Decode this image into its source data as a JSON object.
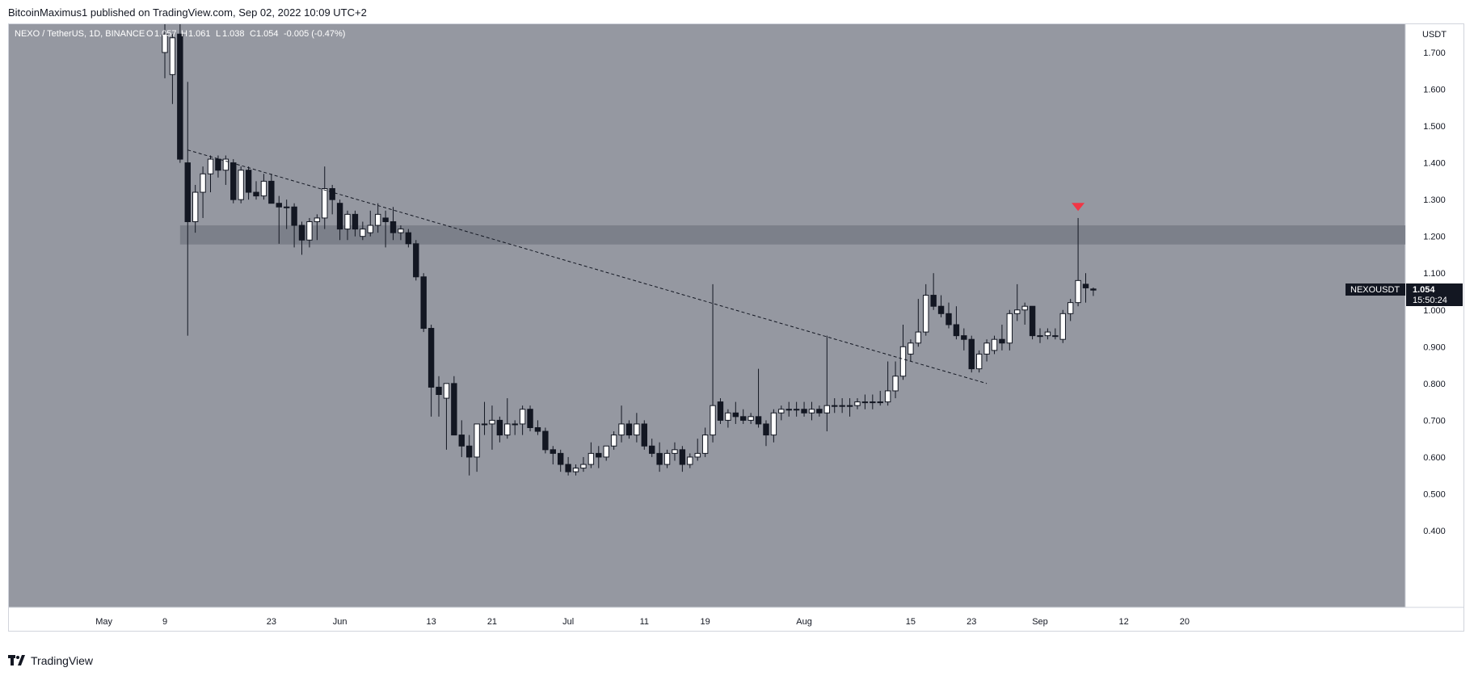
{
  "header": {
    "published_text": "BitcoinMaximus1 published on TradingView.com, Sep 02, 2022 10:09 UTC+2"
  },
  "footer": {
    "brand": "TradingView",
    "logo_icon": "tradingview-logo-icon"
  },
  "colors": {
    "background": "#9598a1",
    "up_candle_fill": "#ffffff",
    "down_candle_fill": "#131722",
    "wick": "#131722",
    "resistance_zone": "#787b86",
    "marker": "#f23645",
    "price_label_bg": "#131722"
  },
  "legend": {
    "symbol": "NEXO / TetherUS, 1D, BINANCE",
    "o_label": "O",
    "o_value": "1.057",
    "h_label": "H",
    "h_value": "1.061",
    "l_label": "L",
    "l_value": "1.038",
    "c_label": "C",
    "c_value": "1.054",
    "change": "-0.005 (-0.47%)"
  },
  "price_label": {
    "symbol": "NEXOUSDT",
    "price": "1.054",
    "countdown": "15:50:24"
  },
  "chart_data": {
    "type": "candlestick",
    "symbol": "NEXOUSDT",
    "y_axis_unit": "USDT",
    "ylim": [
      0.4,
      1.78
    ],
    "y_ticks": [
      "0.400",
      "0.500",
      "0.600",
      "0.700",
      "0.800",
      "0.900",
      "1.000",
      "1.100",
      "1.200",
      "1.300",
      "1.400",
      "1.500",
      "1.600",
      "1.700"
    ],
    "x_ticks": [
      {
        "label": "May",
        "date": "2022-05-01"
      },
      {
        "label": "9",
        "date": "2022-05-09"
      },
      {
        "label": "23",
        "date": "2022-05-23"
      },
      {
        "label": "Jun",
        "date": "2022-06-01"
      },
      {
        "label": "13",
        "date": "2022-06-13"
      },
      {
        "label": "21",
        "date": "2022-06-21"
      },
      {
        "label": "Jul",
        "date": "2022-07-01"
      },
      {
        "label": "11",
        "date": "2022-07-11"
      },
      {
        "label": "19",
        "date": "2022-07-19"
      },
      {
        "label": "Aug",
        "date": "2022-08-01"
      },
      {
        "label": "15",
        "date": "2022-08-15"
      },
      {
        "label": "23",
        "date": "2022-08-23"
      },
      {
        "label": "Sep",
        "date": "2022-09-01"
      },
      {
        "label": "12",
        "date": "2022-09-12"
      },
      {
        "label": "20",
        "date": "2022-09-20"
      }
    ],
    "x_range": [
      "2022-04-26",
      "2022-09-26"
    ],
    "candles": [
      {
        "d": "2022-05-09",
        "o": 1.7,
        "h": 1.78,
        "l": 1.63,
        "c": 1.75
      },
      {
        "d": "2022-05-10",
        "o": 1.64,
        "h": 1.75,
        "l": 1.56,
        "c": 1.74
      },
      {
        "d": "2022-05-11",
        "o": 1.75,
        "h": 1.78,
        "l": 1.4,
        "c": 1.41
      },
      {
        "d": "2022-05-12",
        "o": 1.4,
        "h": 1.62,
        "l": 0.93,
        "c": 1.24
      },
      {
        "d": "2022-05-13",
        "o": 1.24,
        "h": 1.34,
        "l": 1.21,
        "c": 1.32
      },
      {
        "d": "2022-05-14",
        "o": 1.32,
        "h": 1.39,
        "l": 1.25,
        "c": 1.37
      },
      {
        "d": "2022-05-15",
        "o": 1.37,
        "h": 1.42,
        "l": 1.32,
        "c": 1.41
      },
      {
        "d": "2022-05-16",
        "o": 1.41,
        "h": 1.42,
        "l": 1.36,
        "c": 1.38
      },
      {
        "d": "2022-05-17",
        "o": 1.38,
        "h": 1.42,
        "l": 1.34,
        "c": 1.41
      },
      {
        "d": "2022-05-18",
        "o": 1.4,
        "h": 1.41,
        "l": 1.29,
        "c": 1.3
      },
      {
        "d": "2022-05-19",
        "o": 1.3,
        "h": 1.39,
        "l": 1.29,
        "c": 1.38
      },
      {
        "d": "2022-05-20",
        "o": 1.38,
        "h": 1.39,
        "l": 1.3,
        "c": 1.32
      },
      {
        "d": "2022-05-21",
        "o": 1.32,
        "h": 1.35,
        "l": 1.3,
        "c": 1.31
      },
      {
        "d": "2022-05-22",
        "o": 1.31,
        "h": 1.37,
        "l": 1.3,
        "c": 1.35
      },
      {
        "d": "2022-05-23",
        "o": 1.35,
        "h": 1.37,
        "l": 1.29,
        "c": 1.29
      },
      {
        "d": "2022-05-24",
        "o": 1.29,
        "h": 1.31,
        "l": 1.18,
        "c": 1.28
      },
      {
        "d": "2022-05-25",
        "o": 1.28,
        "h": 1.3,
        "l": 1.22,
        "c": 1.28
      },
      {
        "d": "2022-05-26",
        "o": 1.28,
        "h": 1.29,
        "l": 1.17,
        "c": 1.23
      },
      {
        "d": "2022-05-27",
        "o": 1.23,
        "h": 1.24,
        "l": 1.15,
        "c": 1.19
      },
      {
        "d": "2022-05-28",
        "o": 1.19,
        "h": 1.25,
        "l": 1.17,
        "c": 1.24
      },
      {
        "d": "2022-05-29",
        "o": 1.24,
        "h": 1.26,
        "l": 1.19,
        "c": 1.25
      },
      {
        "d": "2022-05-30",
        "o": 1.25,
        "h": 1.39,
        "l": 1.22,
        "c": 1.33
      },
      {
        "d": "2022-05-31",
        "o": 1.33,
        "h": 1.34,
        "l": 1.26,
        "c": 1.3
      },
      {
        "d": "2022-06-01",
        "o": 1.29,
        "h": 1.3,
        "l": 1.19,
        "c": 1.22
      },
      {
        "d": "2022-06-02",
        "o": 1.22,
        "h": 1.27,
        "l": 1.19,
        "c": 1.26
      },
      {
        "d": "2022-06-03",
        "o": 1.26,
        "h": 1.27,
        "l": 1.2,
        "c": 1.22
      },
      {
        "d": "2022-06-04",
        "o": 1.2,
        "h": 1.24,
        "l": 1.19,
        "c": 1.22
      },
      {
        "d": "2022-06-05",
        "o": 1.21,
        "h": 1.27,
        "l": 1.2,
        "c": 1.23
      },
      {
        "d": "2022-06-06",
        "o": 1.23,
        "h": 1.29,
        "l": 1.21,
        "c": 1.26
      },
      {
        "d": "2022-06-07",
        "o": 1.25,
        "h": 1.27,
        "l": 1.17,
        "c": 1.24
      },
      {
        "d": "2022-06-08",
        "o": 1.24,
        "h": 1.28,
        "l": 1.19,
        "c": 1.21
      },
      {
        "d": "2022-06-09",
        "o": 1.21,
        "h": 1.23,
        "l": 1.19,
        "c": 1.22
      },
      {
        "d": "2022-06-10",
        "o": 1.21,
        "h": 1.22,
        "l": 1.17,
        "c": 1.18
      },
      {
        "d": "2022-06-11",
        "o": 1.18,
        "h": 1.19,
        "l": 1.08,
        "c": 1.09
      },
      {
        "d": "2022-06-12",
        "o": 1.09,
        "h": 1.1,
        "l": 0.94,
        "c": 0.95
      },
      {
        "d": "2022-06-13",
        "o": 0.95,
        "h": 0.96,
        "l": 0.71,
        "c": 0.79
      },
      {
        "d": "2022-06-14",
        "o": 0.79,
        "h": 0.82,
        "l": 0.71,
        "c": 0.77
      },
      {
        "d": "2022-06-15",
        "o": 0.76,
        "h": 0.8,
        "l": 0.62,
        "c": 0.8
      },
      {
        "d": "2022-06-16",
        "o": 0.8,
        "h": 0.82,
        "l": 0.66,
        "c": 0.66
      },
      {
        "d": "2022-06-17",
        "o": 0.66,
        "h": 0.7,
        "l": 0.6,
        "c": 0.63
      },
      {
        "d": "2022-06-18",
        "o": 0.63,
        "h": 0.66,
        "l": 0.55,
        "c": 0.6
      },
      {
        "d": "2022-06-19",
        "o": 0.6,
        "h": 0.69,
        "l": 0.56,
        "c": 0.69
      },
      {
        "d": "2022-06-20",
        "o": 0.69,
        "h": 0.75,
        "l": 0.66,
        "c": 0.69
      },
      {
        "d": "2022-06-21",
        "o": 0.69,
        "h": 0.74,
        "l": 0.62,
        "c": 0.7
      },
      {
        "d": "2022-06-22",
        "o": 0.7,
        "h": 0.71,
        "l": 0.64,
        "c": 0.66
      },
      {
        "d": "2022-06-23",
        "o": 0.66,
        "h": 0.76,
        "l": 0.65,
        "c": 0.69
      },
      {
        "d": "2022-06-24",
        "o": 0.69,
        "h": 0.7,
        "l": 0.66,
        "c": 0.69
      },
      {
        "d": "2022-06-25",
        "o": 0.69,
        "h": 0.74,
        "l": 0.66,
        "c": 0.73
      },
      {
        "d": "2022-06-26",
        "o": 0.73,
        "h": 0.74,
        "l": 0.67,
        "c": 0.68
      },
      {
        "d": "2022-06-27",
        "o": 0.68,
        "h": 0.7,
        "l": 0.66,
        "c": 0.67
      },
      {
        "d": "2022-06-28",
        "o": 0.67,
        "h": 0.68,
        "l": 0.61,
        "c": 0.62
      },
      {
        "d": "2022-06-29",
        "o": 0.62,
        "h": 0.63,
        "l": 0.58,
        "c": 0.61
      },
      {
        "d": "2022-06-30",
        "o": 0.61,
        "h": 0.62,
        "l": 0.56,
        "c": 0.58
      },
      {
        "d": "2022-07-01",
        "o": 0.58,
        "h": 0.6,
        "l": 0.55,
        "c": 0.56
      },
      {
        "d": "2022-07-02",
        "o": 0.56,
        "h": 0.58,
        "l": 0.55,
        "c": 0.57
      },
      {
        "d": "2022-07-03",
        "o": 0.57,
        "h": 0.6,
        "l": 0.56,
        "c": 0.58
      },
      {
        "d": "2022-07-04",
        "o": 0.58,
        "h": 0.64,
        "l": 0.57,
        "c": 0.61
      },
      {
        "d": "2022-07-05",
        "o": 0.61,
        "h": 0.63,
        "l": 0.57,
        "c": 0.6
      },
      {
        "d": "2022-07-06",
        "o": 0.6,
        "h": 0.63,
        "l": 0.59,
        "c": 0.63
      },
      {
        "d": "2022-07-07",
        "o": 0.63,
        "h": 0.67,
        "l": 0.62,
        "c": 0.66
      },
      {
        "d": "2022-07-08",
        "o": 0.66,
        "h": 0.74,
        "l": 0.64,
        "c": 0.69
      },
      {
        "d": "2022-07-09",
        "o": 0.69,
        "h": 0.7,
        "l": 0.65,
        "c": 0.66
      },
      {
        "d": "2022-07-10",
        "o": 0.66,
        "h": 0.72,
        "l": 0.64,
        "c": 0.69
      },
      {
        "d": "2022-07-11",
        "o": 0.69,
        "h": 0.7,
        "l": 0.62,
        "c": 0.63
      },
      {
        "d": "2022-07-12",
        "o": 0.63,
        "h": 0.65,
        "l": 0.6,
        "c": 0.61
      },
      {
        "d": "2022-07-13",
        "o": 0.61,
        "h": 0.64,
        "l": 0.56,
        "c": 0.58
      },
      {
        "d": "2022-07-14",
        "o": 0.58,
        "h": 0.62,
        "l": 0.57,
        "c": 0.61
      },
      {
        "d": "2022-07-15",
        "o": 0.61,
        "h": 0.64,
        "l": 0.59,
        "c": 0.62
      },
      {
        "d": "2022-07-16",
        "o": 0.62,
        "h": 0.63,
        "l": 0.56,
        "c": 0.58
      },
      {
        "d": "2022-07-17",
        "o": 0.58,
        "h": 0.61,
        "l": 0.57,
        "c": 0.6
      },
      {
        "d": "2022-07-18",
        "o": 0.6,
        "h": 0.65,
        "l": 0.59,
        "c": 0.61
      },
      {
        "d": "2022-07-19",
        "o": 0.61,
        "h": 0.68,
        "l": 0.6,
        "c": 0.66
      },
      {
        "d": "2022-07-20",
        "o": 0.66,
        "h": 1.07,
        "l": 0.64,
        "c": 0.74
      },
      {
        "d": "2022-07-21",
        "o": 0.75,
        "h": 0.76,
        "l": 0.69,
        "c": 0.7
      },
      {
        "d": "2022-07-22",
        "o": 0.7,
        "h": 0.73,
        "l": 0.68,
        "c": 0.72
      },
      {
        "d": "2022-07-23",
        "o": 0.72,
        "h": 0.75,
        "l": 0.69,
        "c": 0.71
      },
      {
        "d": "2022-07-24",
        "o": 0.71,
        "h": 0.73,
        "l": 0.69,
        "c": 0.7
      },
      {
        "d": "2022-07-25",
        "o": 0.7,
        "h": 0.72,
        "l": 0.69,
        "c": 0.71
      },
      {
        "d": "2022-07-26",
        "o": 0.71,
        "h": 0.84,
        "l": 0.68,
        "c": 0.69
      },
      {
        "d": "2022-07-27",
        "o": 0.69,
        "h": 0.7,
        "l": 0.63,
        "c": 0.66
      },
      {
        "d": "2022-07-28",
        "o": 0.66,
        "h": 0.73,
        "l": 0.64,
        "c": 0.72
      },
      {
        "d": "2022-07-29",
        "o": 0.72,
        "h": 0.74,
        "l": 0.7,
        "c": 0.73
      },
      {
        "d": "2022-07-30",
        "o": 0.73,
        "h": 0.75,
        "l": 0.71,
        "c": 0.73
      },
      {
        "d": "2022-07-31",
        "o": 0.73,
        "h": 0.75,
        "l": 0.71,
        "c": 0.73
      },
      {
        "d": "2022-08-01",
        "o": 0.73,
        "h": 0.75,
        "l": 0.71,
        "c": 0.72
      },
      {
        "d": "2022-08-02",
        "o": 0.72,
        "h": 0.75,
        "l": 0.7,
        "c": 0.73
      },
      {
        "d": "2022-08-03",
        "o": 0.73,
        "h": 0.74,
        "l": 0.71,
        "c": 0.72
      },
      {
        "d": "2022-08-04",
        "o": 0.72,
        "h": 0.93,
        "l": 0.67,
        "c": 0.74
      },
      {
        "d": "2022-08-05",
        "o": 0.74,
        "h": 0.76,
        "l": 0.72,
        "c": 0.74
      },
      {
        "d": "2022-08-06",
        "o": 0.74,
        "h": 0.76,
        "l": 0.72,
        "c": 0.74
      },
      {
        "d": "2022-08-07",
        "o": 0.74,
        "h": 0.76,
        "l": 0.71,
        "c": 0.74
      },
      {
        "d": "2022-08-08",
        "o": 0.74,
        "h": 0.76,
        "l": 0.73,
        "c": 0.75
      },
      {
        "d": "2022-08-09",
        "o": 0.75,
        "h": 0.77,
        "l": 0.73,
        "c": 0.75
      },
      {
        "d": "2022-08-10",
        "o": 0.75,
        "h": 0.77,
        "l": 0.73,
        "c": 0.75
      },
      {
        "d": "2022-08-11",
        "o": 0.75,
        "h": 0.78,
        "l": 0.74,
        "c": 0.75
      },
      {
        "d": "2022-08-12",
        "o": 0.75,
        "h": 0.86,
        "l": 0.74,
        "c": 0.78
      },
      {
        "d": "2022-08-13",
        "o": 0.78,
        "h": 0.86,
        "l": 0.76,
        "c": 0.82
      },
      {
        "d": "2022-08-14",
        "o": 0.82,
        "h": 0.96,
        "l": 0.81,
        "c": 0.9
      },
      {
        "d": "2022-08-15",
        "o": 0.88,
        "h": 0.92,
        "l": 0.86,
        "c": 0.91
      },
      {
        "d": "2022-08-16",
        "o": 0.91,
        "h": 1.03,
        "l": 0.9,
        "c": 0.94
      },
      {
        "d": "2022-08-17",
        "o": 0.94,
        "h": 1.07,
        "l": 0.93,
        "c": 1.04
      },
      {
        "d": "2022-08-18",
        "o": 1.04,
        "h": 1.1,
        "l": 1.0,
        "c": 1.01
      },
      {
        "d": "2022-08-19",
        "o": 1.01,
        "h": 1.04,
        "l": 0.98,
        "c": 0.99
      },
      {
        "d": "2022-08-20",
        "o": 0.99,
        "h": 1.02,
        "l": 0.95,
        "c": 0.96
      },
      {
        "d": "2022-08-21",
        "o": 0.96,
        "h": 1.01,
        "l": 0.92,
        "c": 0.93
      },
      {
        "d": "2022-08-22",
        "o": 0.93,
        "h": 0.95,
        "l": 0.89,
        "c": 0.92
      },
      {
        "d": "2022-08-23",
        "o": 0.92,
        "h": 0.93,
        "l": 0.83,
        "c": 0.84
      },
      {
        "d": "2022-08-24",
        "o": 0.84,
        "h": 0.89,
        "l": 0.83,
        "c": 0.88
      },
      {
        "d": "2022-08-25",
        "o": 0.88,
        "h": 0.92,
        "l": 0.86,
        "c": 0.91
      },
      {
        "d": "2022-08-26",
        "o": 0.89,
        "h": 0.93,
        "l": 0.88,
        "c": 0.92
      },
      {
        "d": "2022-08-27",
        "o": 0.92,
        "h": 0.96,
        "l": 0.89,
        "c": 0.91
      },
      {
        "d": "2022-08-28",
        "o": 0.91,
        "h": 1.0,
        "l": 0.89,
        "c": 0.99
      },
      {
        "d": "2022-08-29",
        "o": 0.99,
        "h": 1.07,
        "l": 0.97,
        "c": 1.0
      },
      {
        "d": "2022-08-30",
        "o": 1.0,
        "h": 1.02,
        "l": 0.96,
        "c": 1.01
      },
      {
        "d": "2022-08-31",
        "o": 1.01,
        "h": 1.01,
        "l": 0.92,
        "c": 0.93
      },
      {
        "d": "2022-09-01",
        "o": 0.93,
        "h": 0.95,
        "l": 0.91,
        "c": 0.93
      },
      {
        "d": "2022-09-02",
        "o": 0.93,
        "h": 0.95,
        "l": 0.92,
        "c": 0.94
      },
      {
        "d": "2022-09-03",
        "o": 0.93,
        "h": 0.95,
        "l": 0.92,
        "c": 0.93
      },
      {
        "d": "2022-09-04",
        "o": 0.92,
        "h": 1.0,
        "l": 0.91,
        "c": 0.99
      },
      {
        "d": "2022-09-05",
        "o": 0.99,
        "h": 1.03,
        "l": 0.97,
        "c": 1.02
      },
      {
        "d": "2022-09-06",
        "o": 1.02,
        "h": 1.25,
        "l": 1.01,
        "c": 1.08
      },
      {
        "d": "2022-09-07",
        "o": 1.07,
        "h": 1.1,
        "l": 1.02,
        "c": 1.06
      },
      {
        "d": "2022-09-08",
        "o": 1.057,
        "h": 1.061,
        "l": 1.038,
        "c": 1.054
      }
    ],
    "resistance_zone": {
      "low": 1.178,
      "high": 1.23,
      "from": "2022-05-11"
    },
    "trendline": {
      "style": "dashed",
      "from": {
        "d": "2022-05-12",
        "p": 1.435
      },
      "to": {
        "d": "2022-08-25",
        "p": 0.8
      }
    },
    "rejection_marker": {
      "d": "2022-09-06",
      "p": 1.28,
      "shape": "down-triangle"
    }
  }
}
